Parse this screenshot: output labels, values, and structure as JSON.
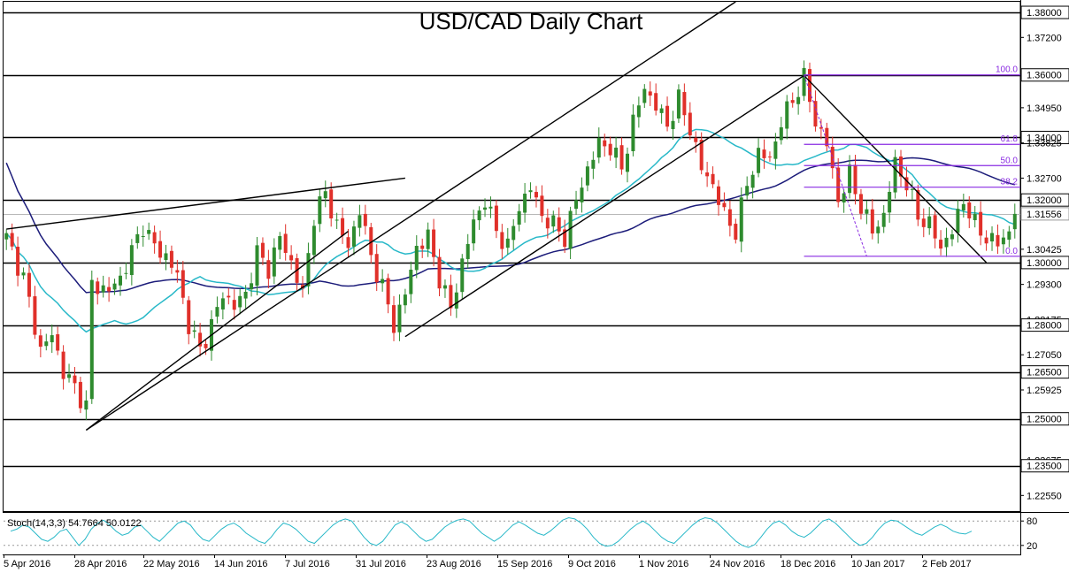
{
  "chart_data": {
    "type": "candlestick",
    "title": "USD/CAD Daily Chart",
    "colors": {
      "up": "#2e8b2e",
      "down": "#e0302a",
      "ma_fast": "#27b8c8",
      "ma_slow": "#1c1c7a",
      "fib": "#8a2be2",
      "trend": "#000000"
    },
    "y_range": [
      1.2205,
      1.3834
    ],
    "y_axis_labels": [
      "1.38000",
      "1.37200",
      "1.36000",
      "1.34950",
      "1.34000",
      "1.33825",
      "1.32700",
      "1.32000",
      "1.31556",
      "1.30425",
      "1.30000",
      "1.29300",
      "1.28175",
      "1.28000",
      "1.27050",
      "1.26500",
      "1.25925",
      "1.25000",
      "1.23675",
      "1.23500",
      "1.22550"
    ],
    "horizontal_levels": [
      1.38,
      1.36,
      1.34,
      1.32,
      1.3,
      1.28,
      1.265,
      1.25,
      1.235
    ],
    "current_price": 1.31556,
    "x_labels": [
      "5 Apr 2016",
      "28 Apr 2016",
      "22 May 2016",
      "14 Jun 2016",
      "7 Jul 2016",
      "31 Jul 2016",
      "23 Aug 2016",
      "15 Sep 2016",
      "9 Oct 2016",
      "1 Nov 2016",
      "24 Nov 2016",
      "18 Dec 2016",
      "10 Jan 2017",
      "2 Feb 2017"
    ],
    "price_path": [
      [
        0,
        1.308
      ],
      [
        3,
        1.295
      ],
      [
        6,
        1.272
      ],
      [
        8,
        1.277
      ],
      [
        10,
        1.265
      ],
      [
        12,
        1.26
      ],
      [
        14,
        1.254
      ],
      [
        15,
        1.293
      ],
      [
        18,
        1.291
      ],
      [
        20,
        1.295
      ],
      [
        24,
        1.312
      ],
      [
        26,
        1.305
      ],
      [
        28,
        1.302
      ],
      [
        30,
        1.296
      ],
      [
        32,
        1.28
      ],
      [
        34,
        1.272
      ],
      [
        36,
        1.28
      ],
      [
        38,
        1.29
      ],
      [
        40,
        1.286
      ],
      [
        42,
        1.29
      ],
      [
        44,
        1.303
      ],
      [
        46,
        1.298
      ],
      [
        48,
        1.308
      ],
      [
        50,
        1.3
      ],
      [
        52,
        1.29
      ],
      [
        54,
        1.315
      ],
      [
        56,
        1.322
      ],
      [
        58,
        1.312
      ],
      [
        60,
        1.305
      ],
      [
        62,
        1.317
      ],
      [
        64,
        1.302
      ],
      [
        66,
        1.292
      ],
      [
        68,
        1.28
      ],
      [
        70,
        1.29
      ],
      [
        72,
        1.305
      ],
      [
        74,
        1.308
      ],
      [
        76,
        1.295
      ],
      [
        78,
        1.285
      ],
      [
        80,
        1.3
      ],
      [
        82,
        1.313
      ],
      [
        84,
        1.32
      ],
      [
        86,
        1.31
      ],
      [
        88,
        1.305
      ],
      [
        90,
        1.318
      ],
      [
        92,
        1.324
      ],
      [
        94,
        1.315
      ],
      [
        96,
        1.312
      ],
      [
        98,
        1.308
      ],
      [
        100,
        1.32
      ],
      [
        102,
        1.33
      ],
      [
        104,
        1.338
      ],
      [
        106,
        1.337
      ],
      [
        108,
        1.33
      ],
      [
        110,
        1.345
      ],
      [
        112,
        1.356
      ],
      [
        114,
        1.35
      ],
      [
        116,
        1.344
      ],
      [
        118,
        1.352
      ],
      [
        120,
        1.343
      ],
      [
        122,
        1.33
      ],
      [
        124,
        1.325
      ],
      [
        126,
        1.315
      ],
      [
        128,
        1.31
      ],
      [
        130,
        1.325
      ],
      [
        132,
        1.335
      ],
      [
        134,
        1.333
      ],
      [
        136,
        1.345
      ],
      [
        138,
        1.352
      ],
      [
        140,
        1.359
      ],
      [
        142,
        1.345
      ],
      [
        144,
        1.338
      ],
      [
        146,
        1.32
      ],
      [
        148,
        1.328
      ],
      [
        150,
        1.318
      ],
      [
        152,
        1.31
      ],
      [
        154,
        1.315
      ],
      [
        156,
        1.332
      ],
      [
        158,
        1.325
      ],
      [
        160,
        1.315
      ],
      [
        162,
        1.312
      ],
      [
        164,
        1.305
      ],
      [
        166,
        1.31
      ],
      [
        168,
        1.32
      ],
      [
        170,
        1.312
      ],
      [
        172,
        1.308
      ],
      [
        174,
        1.306
      ],
      [
        176,
        1.31
      ],
      [
        177,
        1.3156
      ]
    ],
    "fibonacci": {
      "levels": [
        {
          "label": "100.0",
          "price": 1.36
        },
        {
          "label": "61.8",
          "price": 1.3378
        },
        {
          "label": "50.0",
          "price": 1.331
        },
        {
          "label": "38.2",
          "price": 1.3241
        },
        {
          "label": "0.0",
          "price": 1.302
        }
      ]
    },
    "indicator": {
      "label": "Stoch(14,3,3) 54.7664 50.0122",
      "axis_labels": [
        "80",
        "20"
      ],
      "values": [
        55,
        60,
        70,
        65,
        50,
        35,
        30,
        40,
        55,
        60,
        40,
        20,
        35,
        60,
        75,
        82,
        70,
        55,
        45,
        50,
        65,
        70,
        55,
        40,
        30,
        45,
        60,
        75,
        80,
        70,
        50,
        35,
        30,
        45,
        60,
        70,
        75,
        65,
        50,
        40,
        30,
        25,
        40,
        60,
        75,
        70,
        60,
        45,
        30,
        25,
        40,
        55,
        70,
        80,
        85,
        80,
        60,
        40,
        25,
        20,
        30,
        50,
        70,
        78,
        70,
        55,
        40,
        30,
        35,
        50,
        65,
        75,
        82,
        85,
        80,
        65,
        50,
        40,
        30,
        40,
        55,
        70,
        78,
        70,
        60,
        50,
        45,
        55,
        68,
        82,
        88,
        85,
        75,
        60,
        40,
        25,
        18,
        20,
        30,
        45,
        60,
        72,
        80,
        70,
        55,
        40,
        30,
        25,
        40,
        55,
        70,
        82,
        88,
        85,
        75,
        60,
        45,
        30,
        20,
        15,
        22,
        40,
        60,
        75,
        80,
        70,
        55,
        45,
        40,
        50,
        65,
        80,
        85,
        75,
        60,
        45,
        30,
        20,
        25,
        40,
        60,
        75,
        82,
        80,
        70,
        60,
        50,
        45,
        55,
        65,
        72,
        65,
        55,
        50,
        48,
        55
      ]
    }
  }
}
